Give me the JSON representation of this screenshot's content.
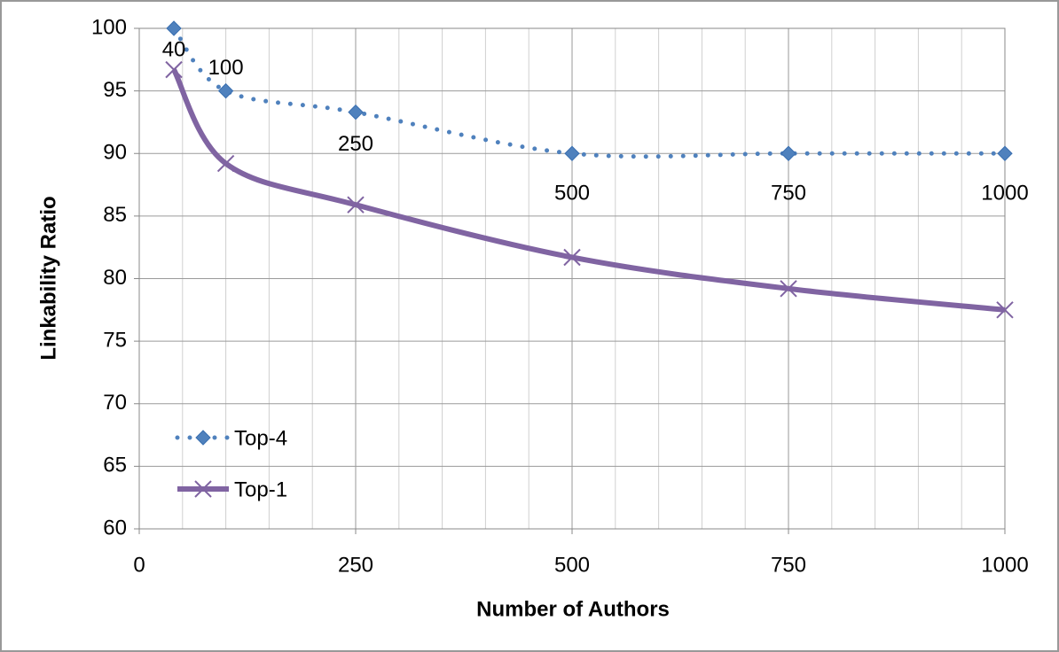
{
  "chart_data": {
    "type": "line",
    "x_label": "Number of Authors",
    "y_label": "Linkability Ratio",
    "x": [
      40,
      100,
      250,
      500,
      750,
      1000
    ],
    "series": [
      {
        "name": "Top-4",
        "color": "#4f81bd",
        "style": "dotted",
        "marker": "diamond",
        "values": [
          100,
          95,
          93.3,
          90,
          90,
          90
        ]
      },
      {
        "name": "Top-1",
        "color": "#8064a2",
        "style": "solid",
        "marker": "x",
        "values": [
          96.7,
          89.2,
          85.9,
          81.7,
          79.2,
          77.5
        ]
      }
    ],
    "xlim": [
      0,
      1000
    ],
    "xticks": [
      0,
      250,
      500,
      750,
      1000
    ],
    "x_minor_grid": [
      50,
      100,
      150,
      200,
      300,
      350,
      400,
      450,
      550,
      600,
      650,
      700,
      800,
      850,
      900,
      950
    ],
    "ylim": [
      60,
      100
    ],
    "yticks": [
      60,
      65,
      70,
      75,
      80,
      85,
      90,
      95,
      100
    ],
    "grid": true,
    "smooth": true,
    "legend": "lower left"
  }
}
